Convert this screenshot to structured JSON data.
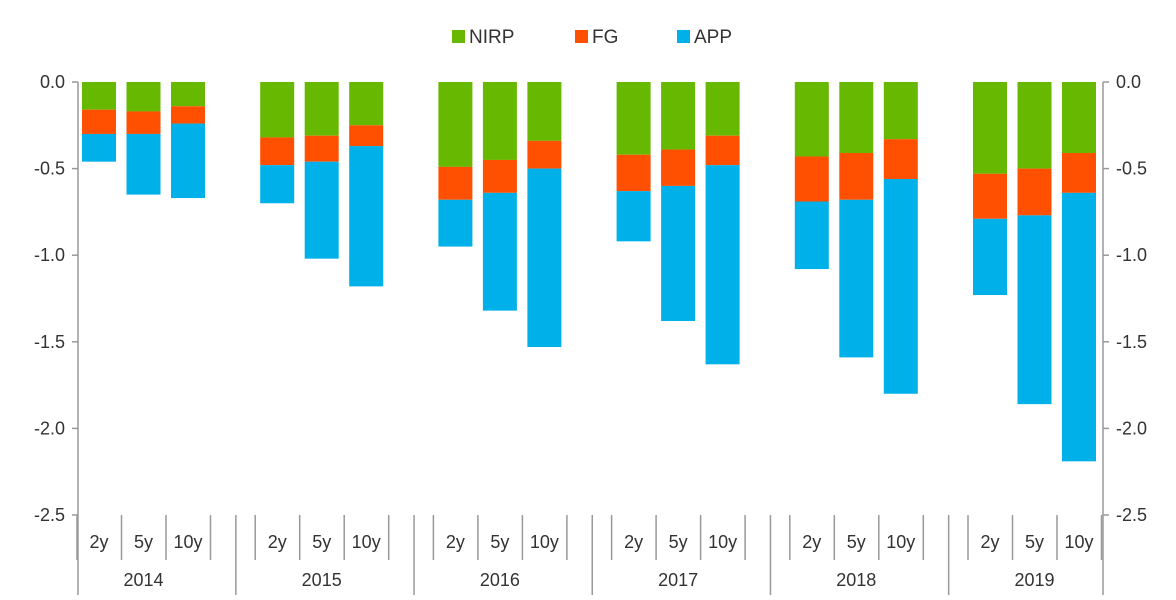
{
  "chart_data": {
    "type": "bar",
    "stacked": true,
    "groups": [
      {
        "label": "2014",
        "categories": [
          "2y",
          "5y",
          "10y"
        ]
      },
      {
        "label": "2015",
        "categories": [
          "2y",
          "5y",
          "10y"
        ]
      },
      {
        "label": "2016",
        "categories": [
          "2y",
          "5y",
          "10y"
        ]
      },
      {
        "label": "2017",
        "categories": [
          "2y",
          "5y",
          "10y"
        ]
      },
      {
        "label": "2018",
        "categories": [
          "2y",
          "5y",
          "10y"
        ]
      },
      {
        "label": "2019",
        "categories": [
          "2y",
          "5y",
          "10y"
        ]
      }
    ],
    "series": [
      {
        "name": "NIRP",
        "color": "#66b800",
        "values": [
          -0.16,
          -0.17,
          -0.14,
          -0.32,
          -0.31,
          -0.25,
          -0.49,
          -0.45,
          -0.34,
          -0.42,
          -0.39,
          -0.31,
          -0.43,
          -0.41,
          -0.33,
          -0.53,
          -0.5,
          -0.41
        ]
      },
      {
        "name": "FG",
        "color": "#ff4f00",
        "values": [
          -0.14,
          -0.13,
          -0.1,
          -0.16,
          -0.15,
          -0.12,
          -0.19,
          -0.19,
          -0.16,
          -0.21,
          -0.21,
          -0.17,
          -0.26,
          -0.27,
          -0.23,
          -0.26,
          -0.27,
          -0.23
        ]
      },
      {
        "name": "APP",
        "color": "#00b0e8",
        "values": [
          -0.16,
          -0.35,
          -0.43,
          -0.22,
          -0.56,
          -0.81,
          -0.27,
          -0.68,
          -1.03,
          -0.29,
          -0.78,
          -1.15,
          -0.39,
          -0.91,
          -1.24,
          -0.44,
          -1.09,
          -1.55
        ]
      }
    ],
    "ylim": [
      -2.5,
      0
    ],
    "yticks": [
      "0.0",
      "-0.5",
      "-1.0",
      "-1.5",
      "-2.0",
      "-2.5"
    ],
    "ytick_values": [
      0,
      -0.5,
      -1,
      -1.5,
      -2,
      -2.5
    ],
    "legend_position": "top-center",
    "grid": false,
    "secondary_y_axis": true
  }
}
